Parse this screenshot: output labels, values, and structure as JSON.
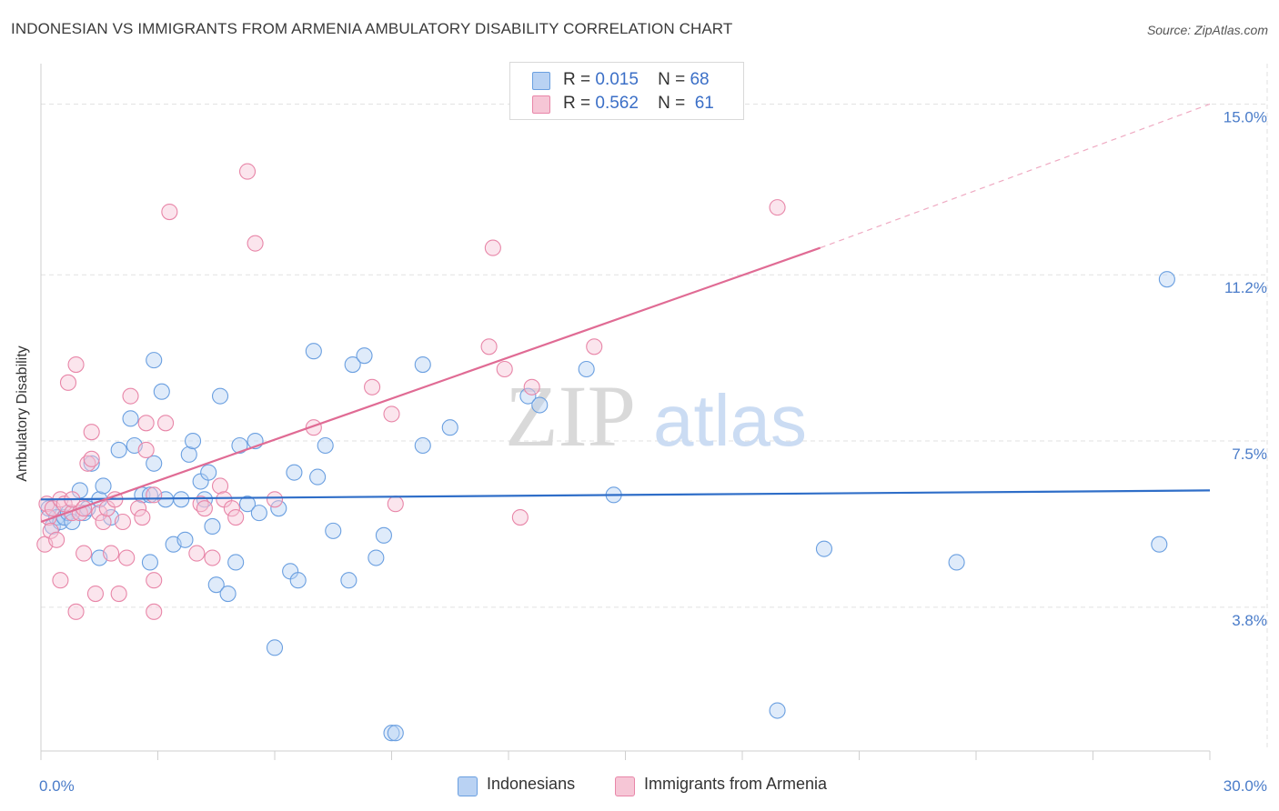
{
  "title": "INDONESIAN VS IMMIGRANTS FROM ARMENIA AMBULATORY DISABILITY CORRELATION CHART",
  "source": "Source: ZipAtlas.com",
  "watermark": {
    "zip": "ZIP",
    "atlas": "atlas"
  },
  "legend_top": {
    "series1": {
      "r_label": "R =",
      "r_value": "0.015",
      "n_label": "N =",
      "n_value": "68"
    },
    "series2": {
      "r_label": "R =",
      "r_value": "0.562",
      "n_label": "N =",
      "n_value": "61"
    }
  },
  "legend_bottom": {
    "series1": "Indonesians",
    "series2": "Immigrants from Armenia"
  },
  "colors": {
    "blue": "#6a9fe0",
    "blue_fill": "#b9d2f3",
    "blue_line": "#2f6ec8",
    "pink": "#e886a8",
    "pink_fill": "#f6c6d6",
    "pink_line": "#e06b94",
    "tick": "#4a7cc9"
  },
  "chart_data": {
    "type": "scatter",
    "title": "INDONESIAN VS IMMIGRANTS FROM ARMENIA AMBULATORY DISABILITY CORRELATION CHART",
    "xlabel": "",
    "ylabel": "Ambulatory Disability",
    "xlim": [
      0,
      30
    ],
    "ylim": [
      0.6,
      15.9
    ],
    "x_tick_labels": [
      {
        "value": 0,
        "label": "0.0%"
      },
      {
        "value": 30,
        "label": "30.0%"
      }
    ],
    "y_ticks": [
      {
        "value": 3.8,
        "label": "3.8%"
      },
      {
        "value": 7.5,
        "label": "7.5%"
      },
      {
        "value": 11.2,
        "label": "11.2%"
      },
      {
        "value": 15.0,
        "label": "15.0%"
      }
    ],
    "series": [
      {
        "name": "Indonesians",
        "color": "#6a9fe0",
        "trend": {
          "x": [
            0,
            30
          ],
          "y": [
            6.2,
            6.4
          ],
          "dashed_from": null
        },
        "points": [
          [
            0.2,
            6.0
          ],
          [
            0.3,
            5.6
          ],
          [
            0.4,
            5.8
          ],
          [
            0.5,
            5.7
          ],
          [
            0.6,
            5.8
          ],
          [
            0.7,
            5.9
          ],
          [
            0.8,
            5.7
          ],
          [
            1.0,
            6.4
          ],
          [
            1.1,
            5.9
          ],
          [
            1.2,
            6.0
          ],
          [
            1.3,
            7.0
          ],
          [
            1.5,
            6.2
          ],
          [
            1.6,
            6.5
          ],
          [
            1.5,
            4.9
          ],
          [
            1.8,
            5.8
          ],
          [
            2.0,
            7.3
          ],
          [
            2.3,
            8.0
          ],
          [
            2.4,
            7.4
          ],
          [
            2.6,
            6.3
          ],
          [
            2.8,
            6.3
          ],
          [
            2.9,
            7.0
          ],
          [
            2.8,
            4.8
          ],
          [
            2.9,
            9.3
          ],
          [
            3.1,
            8.6
          ],
          [
            3.2,
            6.2
          ],
          [
            3.4,
            5.2
          ],
          [
            3.6,
            6.2
          ],
          [
            3.7,
            5.3
          ],
          [
            3.8,
            7.2
          ],
          [
            3.9,
            7.5
          ],
          [
            4.1,
            6.6
          ],
          [
            4.2,
            6.2
          ],
          [
            4.3,
            6.8
          ],
          [
            4.4,
            5.6
          ],
          [
            4.5,
            4.3
          ],
          [
            4.6,
            8.5
          ],
          [
            4.8,
            4.1
          ],
          [
            5.0,
            4.8
          ],
          [
            5.1,
            7.4
          ],
          [
            5.3,
            6.1
          ],
          [
            5.5,
            7.5
          ],
          [
            5.6,
            5.9
          ],
          [
            6.0,
            2.9
          ],
          [
            6.1,
            6.0
          ],
          [
            6.4,
            4.6
          ],
          [
            6.5,
            6.8
          ],
          [
            6.6,
            4.4
          ],
          [
            7.0,
            9.5
          ],
          [
            7.1,
            6.7
          ],
          [
            7.3,
            7.4
          ],
          [
            7.5,
            5.5
          ],
          [
            7.9,
            4.4
          ],
          [
            8.0,
            9.2
          ],
          [
            8.3,
            9.4
          ],
          [
            8.6,
            4.9
          ],
          [
            8.8,
            5.4
          ],
          [
            9.0,
            1.0
          ],
          [
            9.1,
            1.0
          ],
          [
            9.8,
            9.2
          ],
          [
            9.8,
            7.4
          ],
          [
            10.5,
            7.8
          ],
          [
            12.5,
            8.5
          ],
          [
            12.8,
            8.3
          ],
          [
            14.0,
            9.1
          ],
          [
            14.7,
            6.3
          ],
          [
            18.9,
            1.5
          ],
          [
            20.1,
            5.1
          ],
          [
            23.5,
            4.8
          ],
          [
            28.7,
            5.2
          ],
          [
            28.9,
            11.1
          ]
        ]
      },
      {
        "name": "Immigrants from Armenia",
        "color": "#e886a8",
        "trend": {
          "x": [
            0,
            20
          ],
          "y": [
            5.7,
            11.8
          ],
          "dashed_to": [
            30,
            15.0
          ]
        },
        "points": [
          [
            0.1,
            5.2
          ],
          [
            0.15,
            6.1
          ],
          [
            0.2,
            5.8
          ],
          [
            0.25,
            5.5
          ],
          [
            0.3,
            6.0
          ],
          [
            0.4,
            5.3
          ],
          [
            0.5,
            6.2
          ],
          [
            0.5,
            4.4
          ],
          [
            0.6,
            6.1
          ],
          [
            0.7,
            8.8
          ],
          [
            0.8,
            5.9
          ],
          [
            0.8,
            6.2
          ],
          [
            0.9,
            9.2
          ],
          [
            0.9,
            3.7
          ],
          [
            1.0,
            5.9
          ],
          [
            1.1,
            6.0
          ],
          [
            1.1,
            5.0
          ],
          [
            1.2,
            7.0
          ],
          [
            1.3,
            7.7
          ],
          [
            1.3,
            7.1
          ],
          [
            1.4,
            4.1
          ],
          [
            1.5,
            5.9
          ],
          [
            1.6,
            5.7
          ],
          [
            1.7,
            6.0
          ],
          [
            1.8,
            5.0
          ],
          [
            1.9,
            6.2
          ],
          [
            2.0,
            4.1
          ],
          [
            2.1,
            5.7
          ],
          [
            2.2,
            4.9
          ],
          [
            2.3,
            8.5
          ],
          [
            2.5,
            6.0
          ],
          [
            2.6,
            5.8
          ],
          [
            2.7,
            7.3
          ],
          [
            2.7,
            7.9
          ],
          [
            2.9,
            6.3
          ],
          [
            2.9,
            4.4
          ],
          [
            2.9,
            3.7
          ],
          [
            3.2,
            7.9
          ],
          [
            3.3,
            12.6
          ],
          [
            4.0,
            5.0
          ],
          [
            4.1,
            6.1
          ],
          [
            4.2,
            6.0
          ],
          [
            4.4,
            4.9
          ],
          [
            4.6,
            6.5
          ],
          [
            4.7,
            6.2
          ],
          [
            4.9,
            6.0
          ],
          [
            5.0,
            5.8
          ],
          [
            5.3,
            13.5
          ],
          [
            5.5,
            11.9
          ],
          [
            6.0,
            6.2
          ],
          [
            7.0,
            7.8
          ],
          [
            8.5,
            8.7
          ],
          [
            9.0,
            8.1
          ],
          [
            9.1,
            6.1
          ],
          [
            11.5,
            9.6
          ],
          [
            11.6,
            11.8
          ],
          [
            11.9,
            9.1
          ],
          [
            12.3,
            5.8
          ],
          [
            12.6,
            8.7
          ],
          [
            14.2,
            9.6
          ],
          [
            18.9,
            12.7
          ]
        ]
      }
    ]
  }
}
